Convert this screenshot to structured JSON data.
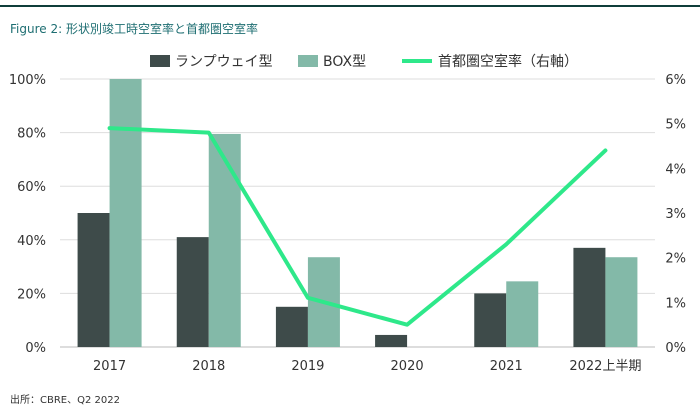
{
  "figure_title": "Figure 2: 形状別竣工時空室率と首都圏空室率",
  "source": "出所：CBRE、Q2 2022",
  "colors": {
    "ramp": "#3e4b4a",
    "box": "#83b9a8",
    "vacancy": "#2ee88a",
    "title": "#1e6e72",
    "rule": "#0f3d3a",
    "grid": "#dddddd"
  },
  "chart_data": {
    "type": "bar",
    "categories": [
      "2017",
      "2018",
      "2019",
      "2020",
      "2021",
      "2022上半期"
    ],
    "series": [
      {
        "name": "ランプウェイ型",
        "type": "bar",
        "axis": "left",
        "values": [
          50,
          41,
          15,
          4.5,
          20,
          37
        ]
      },
      {
        "name": "BOX型",
        "type": "bar",
        "axis": "left",
        "values": [
          100,
          79.5,
          33.5,
          null,
          24.5,
          33.5
        ]
      },
      {
        "name": "首都圏空室率（右軸）",
        "type": "line",
        "axis": "right",
        "values": [
          4.9,
          4.8,
          1.1,
          0.5,
          2.3,
          4.4
        ]
      }
    ],
    "y_left": {
      "ticks": [
        "0%",
        "20%",
        "40%",
        "60%",
        "80%",
        "100%"
      ],
      "ylim": [
        0,
        100
      ]
    },
    "y_right": {
      "ticks": [
        "0%",
        "1%",
        "2%",
        "3%",
        "4%",
        "5%",
        "6%"
      ],
      "ylim": [
        0,
        6
      ]
    },
    "grid": true,
    "legend_position": "top"
  }
}
